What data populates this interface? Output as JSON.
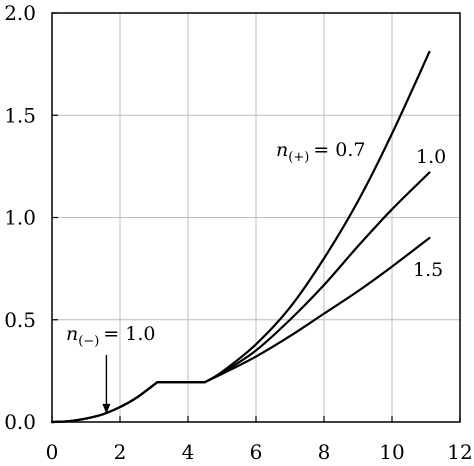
{
  "chart_data": {
    "type": "line",
    "xlim": [
      0,
      12
    ],
    "ylim": [
      0,
      2.0
    ],
    "grid": true,
    "x_ticks": [
      {
        "value": 0,
        "label": "0"
      },
      {
        "value": 2,
        "label": "2"
      },
      {
        "value": 4,
        "label": "4"
      },
      {
        "value": 6,
        "label": "6"
      },
      {
        "value": 8,
        "label": "8"
      },
      {
        "value": 10,
        "label": "10"
      },
      {
        "value": 12,
        "label": "12"
      }
    ],
    "y_ticks": [
      {
        "value": 0.0,
        "label": "0.0"
      },
      {
        "value": 0.5,
        "label": "0.5"
      },
      {
        "value": 1.0,
        "label": "1.0"
      },
      {
        "value": 1.5,
        "label": "1.5"
      },
      {
        "value": 2.0,
        "label": "2.0"
      }
    ],
    "series": [
      {
        "name": "0.7",
        "x": [
          0,
          0.5,
          1.0,
          1.5,
          2.0,
          2.5,
          3.1,
          4.5,
          5.0,
          6.0,
          7.0,
          8.0,
          9.0,
          10.0,
          11.1
        ],
        "y": [
          0,
          0.004,
          0.017,
          0.038,
          0.073,
          0.12,
          0.195,
          0.195,
          0.245,
          0.38,
          0.56,
          0.8,
          1.08,
          1.41,
          1.81
        ]
      },
      {
        "name": "1.0",
        "x": [
          0,
          0.5,
          1.0,
          1.5,
          2.0,
          2.5,
          3.1,
          4.5,
          5.0,
          6.0,
          7.0,
          8.0,
          9.0,
          10.0,
          11.1
        ],
        "y": [
          0,
          0.004,
          0.017,
          0.038,
          0.073,
          0.12,
          0.195,
          0.195,
          0.24,
          0.35,
          0.5,
          0.67,
          0.86,
          1.04,
          1.22
        ]
      },
      {
        "name": "1.5",
        "x": [
          0,
          0.5,
          1.0,
          1.5,
          2.0,
          2.5,
          3.1,
          4.5,
          5.0,
          6.0,
          7.0,
          8.0,
          9.0,
          10.0,
          11.1
        ],
        "y": [
          0,
          0.004,
          0.017,
          0.038,
          0.073,
          0.12,
          0.195,
          0.195,
          0.235,
          0.32,
          0.42,
          0.53,
          0.64,
          0.76,
          0.9
        ]
      }
    ],
    "annotations": {
      "n_plus": {
        "n": "n",
        "sub": "(+)",
        "value": "= 0.7"
      },
      "label_1_0": "1.0",
      "label_1_5": "1.5",
      "n_minus": {
        "n": "n",
        "sub": "(−)",
        "value": "= 1.0",
        "arrow_x": 1.6
      }
    }
  }
}
